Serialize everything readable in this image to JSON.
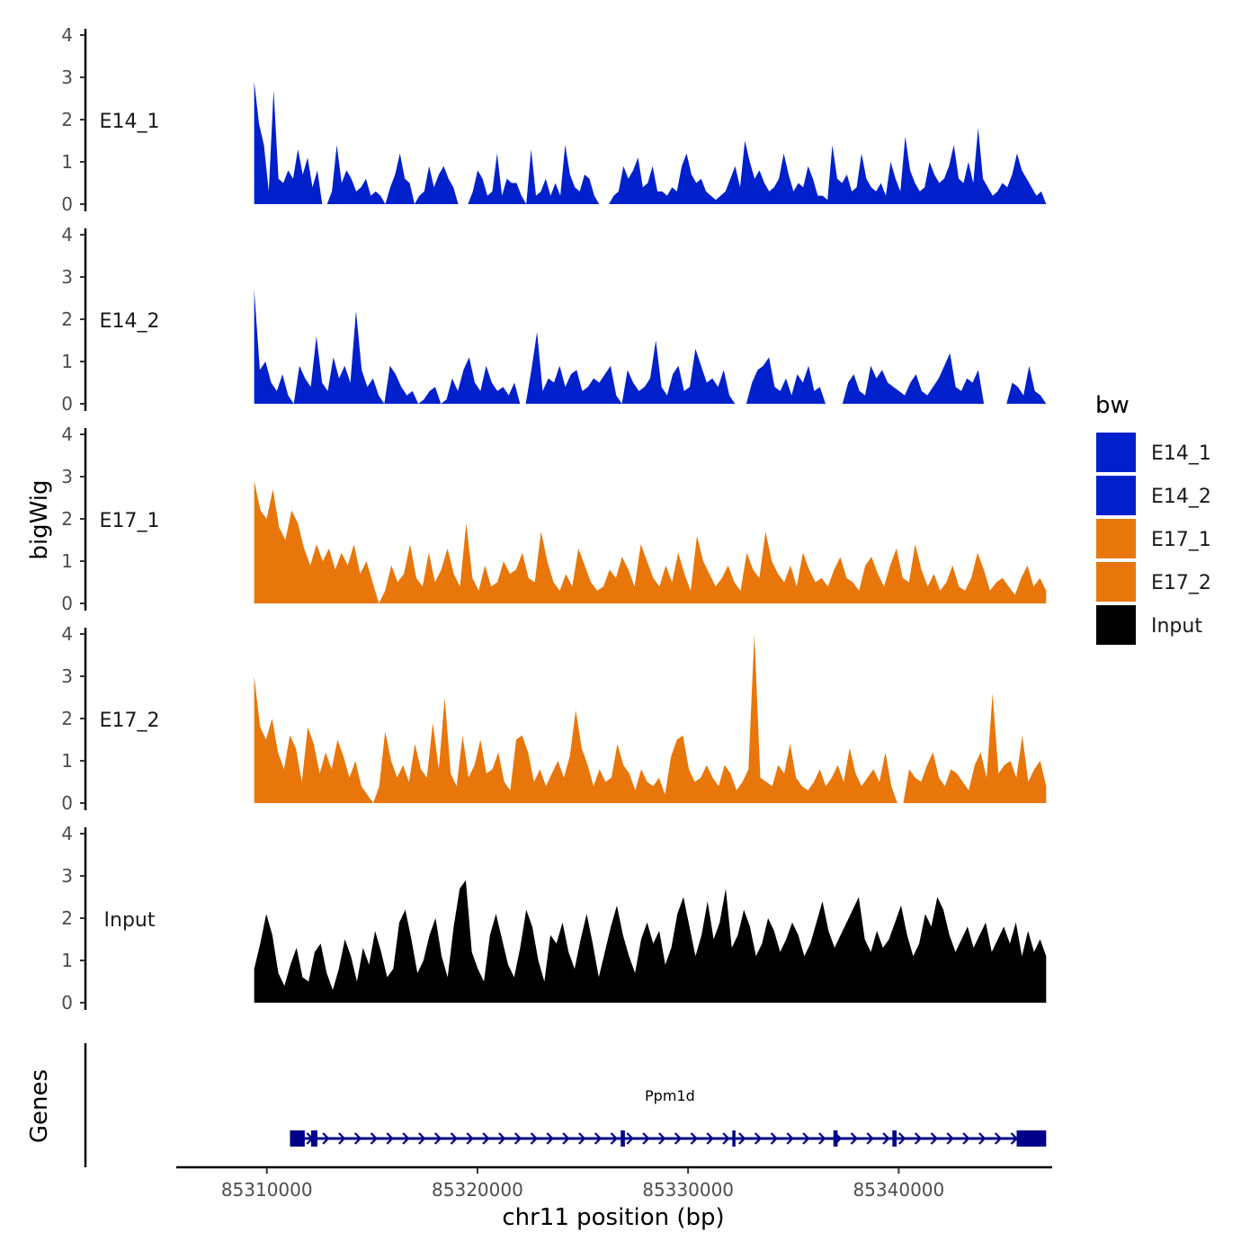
{
  "chart_data": {
    "type": "area",
    "y_axis_title": "bigWig",
    "x_axis_title": "chr11 position (bp)",
    "genes_axis_title": "Genes",
    "xlim": [
      85305700,
      85347200
    ],
    "x_ticks": [
      85310000,
      85320000,
      85330000,
      85340000
    ],
    "x_tick_labels": [
      "85310000",
      "85320000",
      "85330000",
      "85340000"
    ],
    "ylim": [
      0,
      4
    ],
    "y_ticks": [
      0,
      1,
      2,
      3,
      4
    ],
    "y_tick_labels": [
      "0",
      "1",
      "2",
      "3",
      "4"
    ],
    "data_range": [
      85309400,
      85347000
    ],
    "legend": {
      "title": "bw",
      "entries": [
        {
          "label": "E14_1",
          "color": "#0020CC"
        },
        {
          "label": "E14_2",
          "color": "#0020CC"
        },
        {
          "label": "E17_1",
          "color": "#E8760A"
        },
        {
          "label": "E17_2",
          "color": "#E8760A"
        },
        {
          "label": "Input",
          "color": "#000000"
        }
      ]
    },
    "tracks": [
      {
        "name": "E14_1",
        "label": "E14_1",
        "color": "#0020CC",
        "values": [
          2.9,
          1.9,
          1.4,
          0.3,
          2.7,
          0.6,
          0.5,
          0.8,
          0.6,
          1.3,
          0.7,
          1.1,
          0.4,
          0.8,
          0,
          0,
          0.3,
          1.4,
          0.5,
          0.8,
          0.6,
          0.3,
          0.4,
          0.6,
          0.2,
          0.3,
          0.2,
          0,
          0.4,
          0.7,
          1.2,
          0.6,
          0.5,
          0,
          0.2,
          0.3,
          0.9,
          0.4,
          0.7,
          0.9,
          0.6,
          0.4,
          0,
          0,
          0,
          0.3,
          0.8,
          0.6,
          0.2,
          0.3,
          1.2,
          0.2,
          0.6,
          0.5,
          0.5,
          0.2,
          0,
          1.3,
          0.2,
          0.3,
          0.6,
          0.2,
          0.5,
          0.2,
          1.4,
          0.7,
          0.4,
          0.3,
          0.7,
          0.6,
          0.2,
          0,
          0,
          0,
          0.2,
          0.3,
          0.9,
          0.6,
          0.8,
          1.1,
          0.4,
          0.5,
          0.9,
          0.3,
          0.3,
          0.2,
          0.4,
          0.3,
          0.9,
          1.2,
          0.7,
          0.5,
          0.6,
          0.3,
          0.2,
          0.1,
          0.2,
          0.3,
          0.6,
          0.9,
          0.4,
          1.5,
          1.0,
          0.6,
          0.8,
          0.5,
          0.3,
          0.4,
          0.6,
          1.2,
          0.7,
          0.3,
          0.5,
          0.4,
          0.9,
          0.6,
          0.2,
          0.2,
          0.1,
          1.4,
          0.6,
          0.5,
          0.7,
          0.3,
          0.4,
          1.2,
          0.6,
          0.4,
          0.3,
          0.5,
          0.2,
          1.0,
          0.6,
          0.3,
          1.6,
          0.8,
          0.5,
          0.3,
          0.4,
          1.0,
          0.7,
          0.5,
          0.6,
          0.9,
          1.4,
          0.6,
          0.5,
          1.0,
          0.5,
          1.8,
          0.6,
          0.4,
          0.2,
          0.3,
          0.5,
          0.4,
          0.7,
          1.2,
          0.8,
          0.6,
          0.4,
          0.2,
          0.3,
          0
        ]
      },
      {
        "name": "E14_2",
        "label": "E14_2",
        "color": "#0020CC",
        "values": [
          2.7,
          0.8,
          1.0,
          0.5,
          0.3,
          0.7,
          0.2,
          0,
          0.9,
          0.6,
          0.4,
          1.6,
          0.5,
          0.3,
          1.1,
          0.6,
          0.9,
          0.5,
          2.2,
          0.8,
          0.4,
          0.6,
          0.2,
          0,
          0.9,
          0.7,
          0.4,
          0.2,
          0.3,
          0,
          0.1,
          0.3,
          0.4,
          0,
          0.1,
          0.6,
          0.3,
          0.8,
          1.1,
          0.5,
          0.3,
          0.9,
          0.5,
          0.3,
          0.4,
          0.2,
          0.5,
          0,
          0,
          0.8,
          1.7,
          0.3,
          0.6,
          0.5,
          0.9,
          0.4,
          0.7,
          0.8,
          0.3,
          0.4,
          0.6,
          0.5,
          0.7,
          0.9,
          0.2,
          0,
          0.8,
          0.5,
          0.3,
          0.4,
          0.6,
          1.5,
          0.4,
          0.2,
          0.7,
          0.9,
          0.3,
          0.4,
          1.3,
          0.9,
          0.5,
          0.6,
          0.4,
          0.8,
          0.2,
          0,
          0,
          0,
          0.5,
          0.8,
          0.9,
          1.1,
          0.4,
          0.3,
          0.6,
          0.2,
          0.7,
          0.5,
          0.9,
          0.3,
          0.4,
          0,
          0,
          0,
          0,
          0.5,
          0.7,
          0.3,
          0.2,
          0.9,
          0.6,
          0.8,
          0.5,
          0.4,
          0.3,
          0.2,
          0.5,
          0.7,
          0.3,
          0.2,
          0.4,
          0.6,
          0.9,
          1.2,
          0.4,
          0.3,
          0.6,
          0.5,
          0.8,
          0,
          0,
          0,
          0,
          0,
          0.5,
          0.4,
          0.2,
          0.9,
          0.3,
          0.2,
          0
        ]
      },
      {
        "name": "E17_1",
        "label": "E17_1",
        "color": "#E8760A",
        "values": [
          2.9,
          2.2,
          2.0,
          2.7,
          1.8,
          1.5,
          2.2,
          1.9,
          1.3,
          0.9,
          1.4,
          1.0,
          1.3,
          0.8,
          1.2,
          0.9,
          1.4,
          0.7,
          1.0,
          0.5,
          0,
          0.3,
          0.9,
          0.5,
          0.7,
          1.4,
          0.6,
          0.4,
          1.2,
          0.5,
          0.8,
          1.3,
          0.7,
          0.4,
          1.9,
          0.6,
          0.3,
          0.9,
          0.4,
          0.5,
          1.0,
          0.7,
          0.8,
          1.2,
          0.6,
          0.5,
          1.7,
          1.0,
          0.5,
          0.3,
          0.7,
          0.4,
          1.3,
          0.9,
          0.5,
          0.3,
          0.4,
          0.8,
          0.6,
          1.1,
          0.8,
          0.4,
          1.4,
          1.0,
          0.6,
          0.4,
          0.9,
          0.5,
          1.2,
          0.7,
          0.3,
          1.6,
          1.0,
          0.7,
          0.4,
          0.6,
          0.9,
          0.5,
          0.3,
          1.2,
          0.8,
          0.6,
          1.7,
          1.0,
          0.7,
          0.5,
          0.9,
          0.4,
          1.2,
          0.8,
          0.5,
          0.6,
          0.4,
          0.8,
          1.1,
          0.6,
          0.5,
          0.3,
          0.9,
          1.1,
          0.7,
          0.4,
          0.9,
          1.3,
          0.6,
          0.5,
          1.4,
          0.8,
          0.4,
          0.7,
          0.3,
          0.5,
          0.9,
          0.4,
          0.3,
          0.6,
          1.2,
          0.8,
          0.3,
          0.5,
          0.6,
          0.4,
          0.2,
          0.6,
          0.9,
          0.4,
          0.6,
          0.3
        ]
      },
      {
        "name": "E17_2",
        "label": "E17_2",
        "color": "#E8760A",
        "values": [
          3.0,
          1.8,
          1.5,
          2.0,
          1.2,
          0.8,
          1.6,
          1.3,
          0.5,
          1.8,
          1.4,
          0.7,
          1.2,
          0.8,
          1.5,
          1.1,
          0.6,
          1.0,
          0.4,
          0.2,
          0,
          0.4,
          1.7,
          1.0,
          0.6,
          0.9,
          0.5,
          1.4,
          0.8,
          0.6,
          1.9,
          0.8,
          2.5,
          0.7,
          0.4,
          1.6,
          0.6,
          0.9,
          1.5,
          0.7,
          0.8,
          1.2,
          0.5,
          0.3,
          1.5,
          1.6,
          1.2,
          0.5,
          0.8,
          0.4,
          0.7,
          1.0,
          0.6,
          1.1,
          2.2,
          1.3,
          0.9,
          0.4,
          0.8,
          0.5,
          0.6,
          1.4,
          0.9,
          0.7,
          0.3,
          0.8,
          0.5,
          0.4,
          0.6,
          0.2,
          1.1,
          1.5,
          1.6,
          0.8,
          0.5,
          0.6,
          0.9,
          0.6,
          0.4,
          0.9,
          0.7,
          0.3,
          0.5,
          0.8,
          4.0,
          0.6,
          0.5,
          0.4,
          0.9,
          0.7,
          1.4,
          0.6,
          0.4,
          0.3,
          0.5,
          0.8,
          0.4,
          0.6,
          0.9,
          0.5,
          1.3,
          0.7,
          0.4,
          0.6,
          0.8,
          0.5,
          1.2,
          0.4,
          0,
          0,
          0.8,
          0.6,
          0.5,
          0.9,
          1.2,
          0.6,
          0.4,
          0.8,
          0.7,
          0.5,
          0.3,
          0.9,
          1.2,
          0.6,
          2.6,
          0.7,
          0.9,
          1.0,
          0.6,
          1.6,
          0.5,
          0.8,
          1.0,
          0.4
        ]
      },
      {
        "name": "Input",
        "label": "Input",
        "color": "#000000",
        "values": [
          0.8,
          1.4,
          2.1,
          1.6,
          0.7,
          0.4,
          0.9,
          1.3,
          0.6,
          0.5,
          1.2,
          1.4,
          0.7,
          0.3,
          0.8,
          1.5,
          1.1,
          0.5,
          1.3,
          0.9,
          1.7,
          1.2,
          0.6,
          0.8,
          1.9,
          2.2,
          1.5,
          0.7,
          1.0,
          1.6,
          2.0,
          1.1,
          0.6,
          1.8,
          2.7,
          2.9,
          1.2,
          0.8,
          0.5,
          1.6,
          2.1,
          1.5,
          0.9,
          0.6,
          1.3,
          2.2,
          1.8,
          1.0,
          0.5,
          1.6,
          1.4,
          1.9,
          1.2,
          0.8,
          1.5,
          2.1,
          1.4,
          0.6,
          1.2,
          1.8,
          2.3,
          1.6,
          1.1,
          0.7,
          1.5,
          1.9,
          1.4,
          1.7,
          0.9,
          1.3,
          2.1,
          2.5,
          1.8,
          1.1,
          1.6,
          2.4,
          1.5,
          1.9,
          2.7,
          1.3,
          1.6,
          2.2,
          1.8,
          1.1,
          1.4,
          2.0,
          1.7,
          1.2,
          1.5,
          1.9,
          1.6,
          1.1,
          1.4,
          1.9,
          2.4,
          1.7,
          1.3,
          1.6,
          1.9,
          2.2,
          2.5,
          1.5,
          1.2,
          1.7,
          1.3,
          1.5,
          1.9,
          2.3,
          1.6,
          1.1,
          1.4,
          2.1,
          1.8,
          2.5,
          2.2,
          1.6,
          1.2,
          1.5,
          1.8,
          1.3,
          1.6,
          1.9,
          1.2,
          1.5,
          1.8,
          1.4,
          1.9,
          1.1,
          1.7,
          1.2,
          1.5,
          1.1
        ]
      }
    ],
    "gene": {
      "name": "Ppm1d",
      "start": 85311100,
      "end": 85347000,
      "strand": "+",
      "color": "#00008B",
      "exons": [
        [
          85311100,
          85311800
        ],
        [
          85312100,
          85312400
        ],
        [
          85326800,
          85327000
        ],
        [
          85332100,
          85332250
        ],
        [
          85336900,
          85337100
        ],
        [
          85339700,
          85339900
        ],
        [
          85345600,
          85347000
        ]
      ]
    }
  }
}
